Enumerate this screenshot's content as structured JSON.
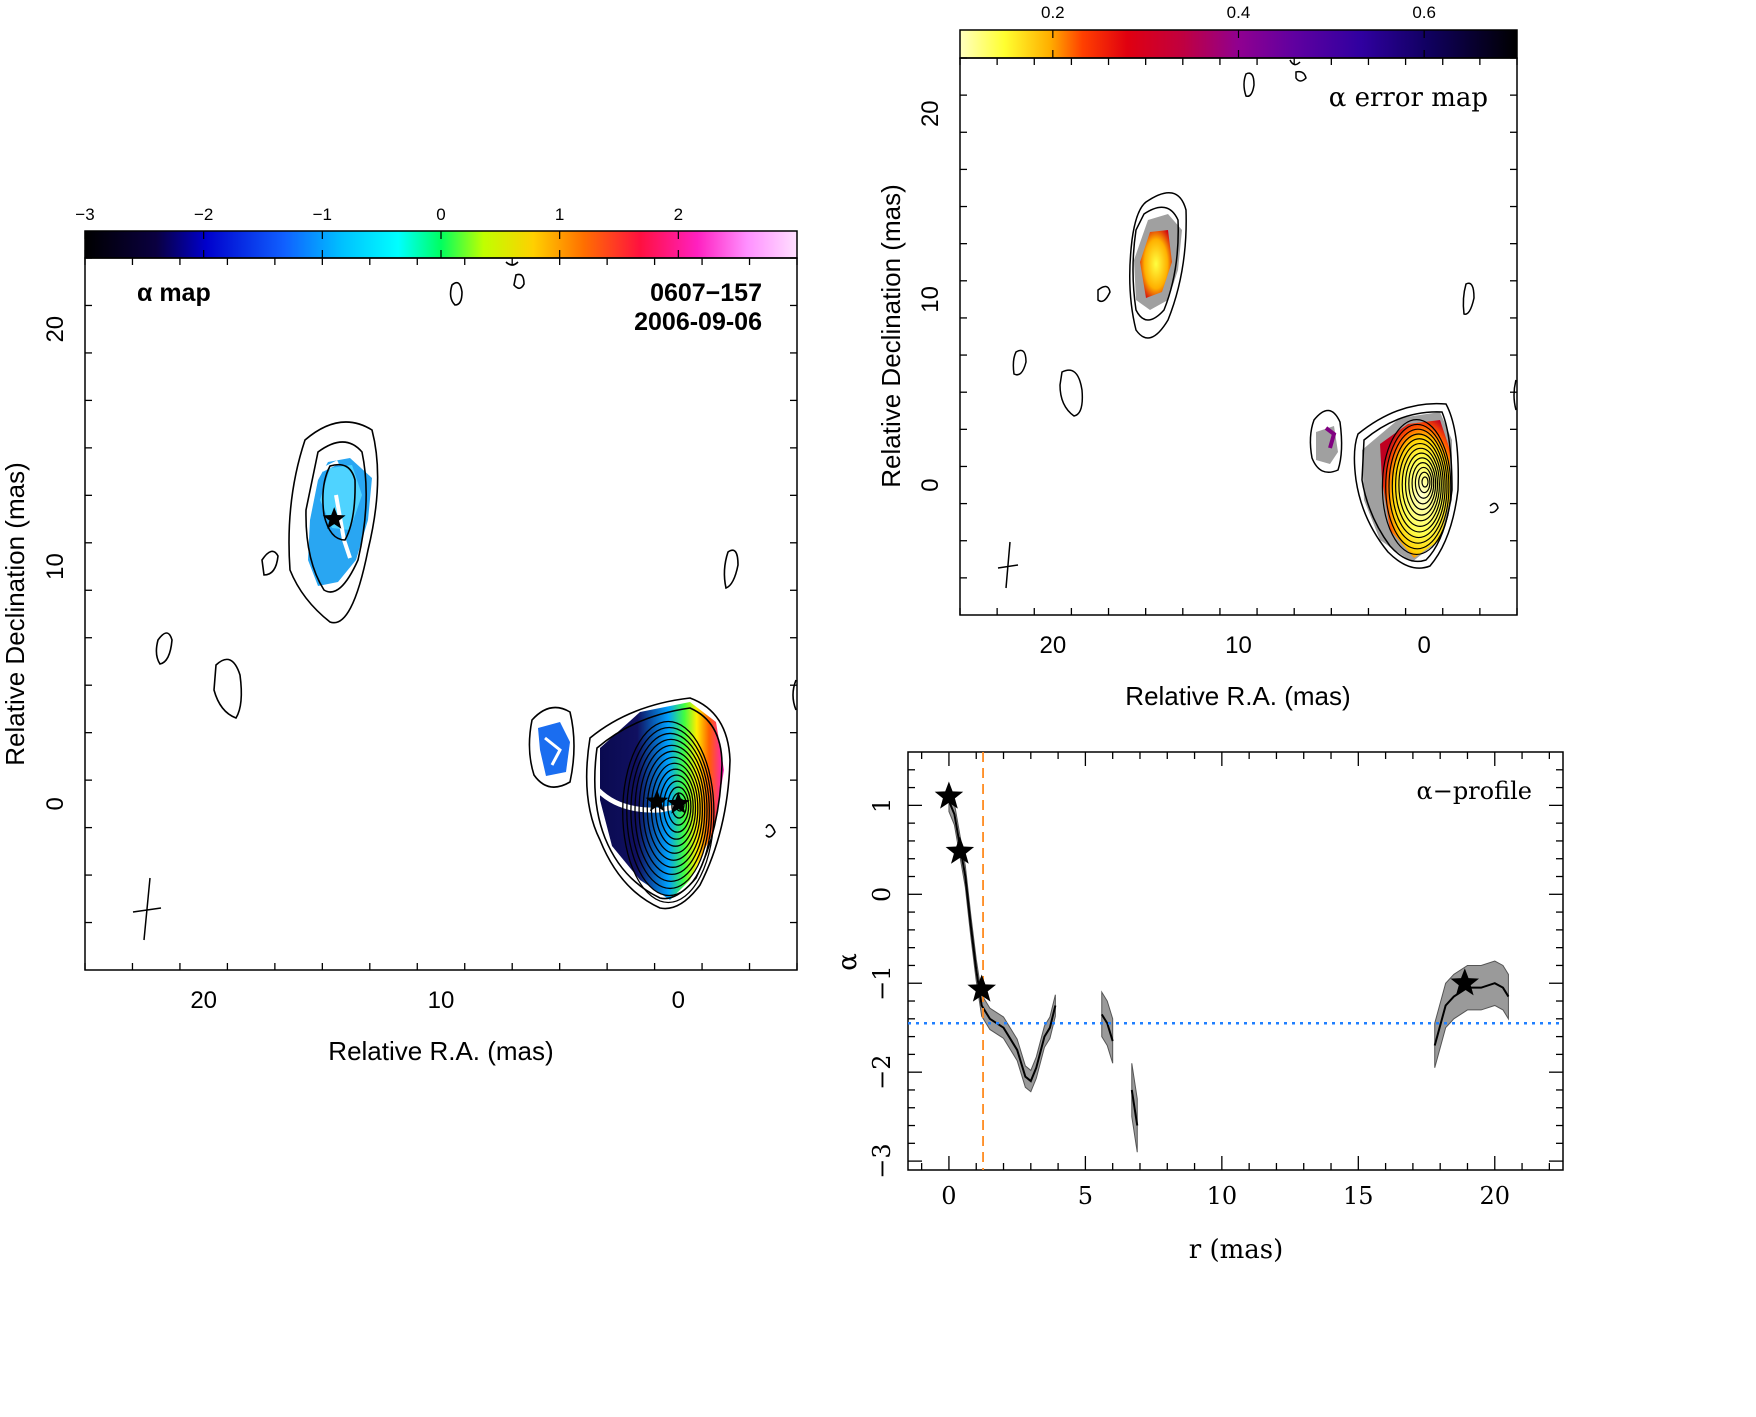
{
  "chart_data": [
    {
      "type": "heatmap",
      "name": "alpha-map",
      "label": "α map",
      "source": "0607−157",
      "date": "2006-09-06",
      "xlabel": "Relative R.A. (mas)",
      "ylabel": "Relative Declination (mas)",
      "xlim": [
        25,
        -5
      ],
      "ylim": [
        -7,
        23
      ],
      "xticks": [
        20,
        10,
        0
      ],
      "yticks": [
        0,
        10,
        20
      ],
      "colorbar": {
        "range": [
          -3,
          3
        ],
        "ticks": [
          -3,
          -2,
          -1,
          0,
          1,
          2
        ],
        "colormap": "spectral-rainbow"
      },
      "stars": [
        {
          "x": 14.5,
          "y": 12.0
        },
        {
          "x": 0.9,
          "y": 0.1
        },
        {
          "x": 0.0,
          "y": 0.0
        }
      ],
      "colors": {
        "core_inner": "#ff2fa0",
        "core_mid": "#ffee00",
        "core_outer": "#0a0a70",
        "jet": "#2ea8ff"
      }
    },
    {
      "type": "heatmap",
      "name": "alpha-error-map",
      "label": "α error map",
      "xlabel": "Relative R.A. (mas)",
      "ylabel": "Relative Declination (mas)",
      "xlim": [
        25,
        -5
      ],
      "ylim": [
        -7,
        23
      ],
      "xticks": [
        20,
        10,
        0
      ],
      "yticks": [
        0,
        10,
        20
      ],
      "colorbar": {
        "range": [
          0.1,
          0.7
        ],
        "ticks": [
          0.2,
          0.4,
          0.6
        ],
        "colormap": "heat"
      }
    },
    {
      "type": "line",
      "name": "alpha-profile",
      "label": "α−profile",
      "xlabel": "r (mas)",
      "ylabel": "α",
      "xlim": [
        -1.5,
        22.5
      ],
      "ylim": [
        -3.1,
        1.6
      ],
      "xticks": [
        0,
        5,
        10,
        15,
        20
      ],
      "yticks": [
        1,
        0,
        -1,
        -2,
        -3
      ],
      "series": [
        {
          "points": [
            [
              0,
              1.05
            ],
            [
              0.2,
              0.9
            ],
            [
              0.4,
              0.55
            ],
            [
              0.6,
              0.2
            ],
            [
              0.8,
              -0.35
            ],
            [
              1.0,
              -0.85
            ],
            [
              1.2,
              -1.25
            ],
            [
              1.5,
              -1.4
            ],
            [
              2.0,
              -1.5
            ],
            [
              2.5,
              -1.75
            ],
            [
              2.8,
              -2.05
            ],
            [
              3.0,
              -2.1
            ],
            [
              3.2,
              -1.95
            ],
            [
              3.5,
              -1.6
            ],
            [
              3.7,
              -1.5
            ],
            [
              3.9,
              -1.25
            ]
          ],
          "err": 0.12
        },
        {
          "points": [
            [
              5.6,
              -1.35
            ],
            [
              5.8,
              -1.45
            ],
            [
              6.0,
              -1.65
            ]
          ],
          "err": 0.25
        },
        {
          "points": [
            [
              6.7,
              -2.2
            ],
            [
              6.9,
              -2.6
            ]
          ],
          "err": 0.3
        },
        {
          "points": [
            [
              17.8,
              -1.7
            ],
            [
              18.2,
              -1.25
            ],
            [
              18.5,
              -1.15
            ],
            [
              19.0,
              -1.05
            ],
            [
              19.5,
              -1.05
            ],
            [
              20.0,
              -1.0
            ],
            [
              20.3,
              -1.05
            ],
            [
              20.5,
              -1.15
            ]
          ],
          "err": 0.25
        }
      ],
      "stars": [
        [
          0,
          1.1
        ],
        [
          0.4,
          0.48
        ],
        [
          1.2,
          -1.07
        ],
        [
          18.9,
          -1.0
        ]
      ],
      "hline": -1.45,
      "vline": 1.25,
      "colors": {
        "line": "#000000",
        "band": "#9a9a9a",
        "hline": "#1f7fff",
        "vline": "#ff8a1f"
      }
    }
  ]
}
